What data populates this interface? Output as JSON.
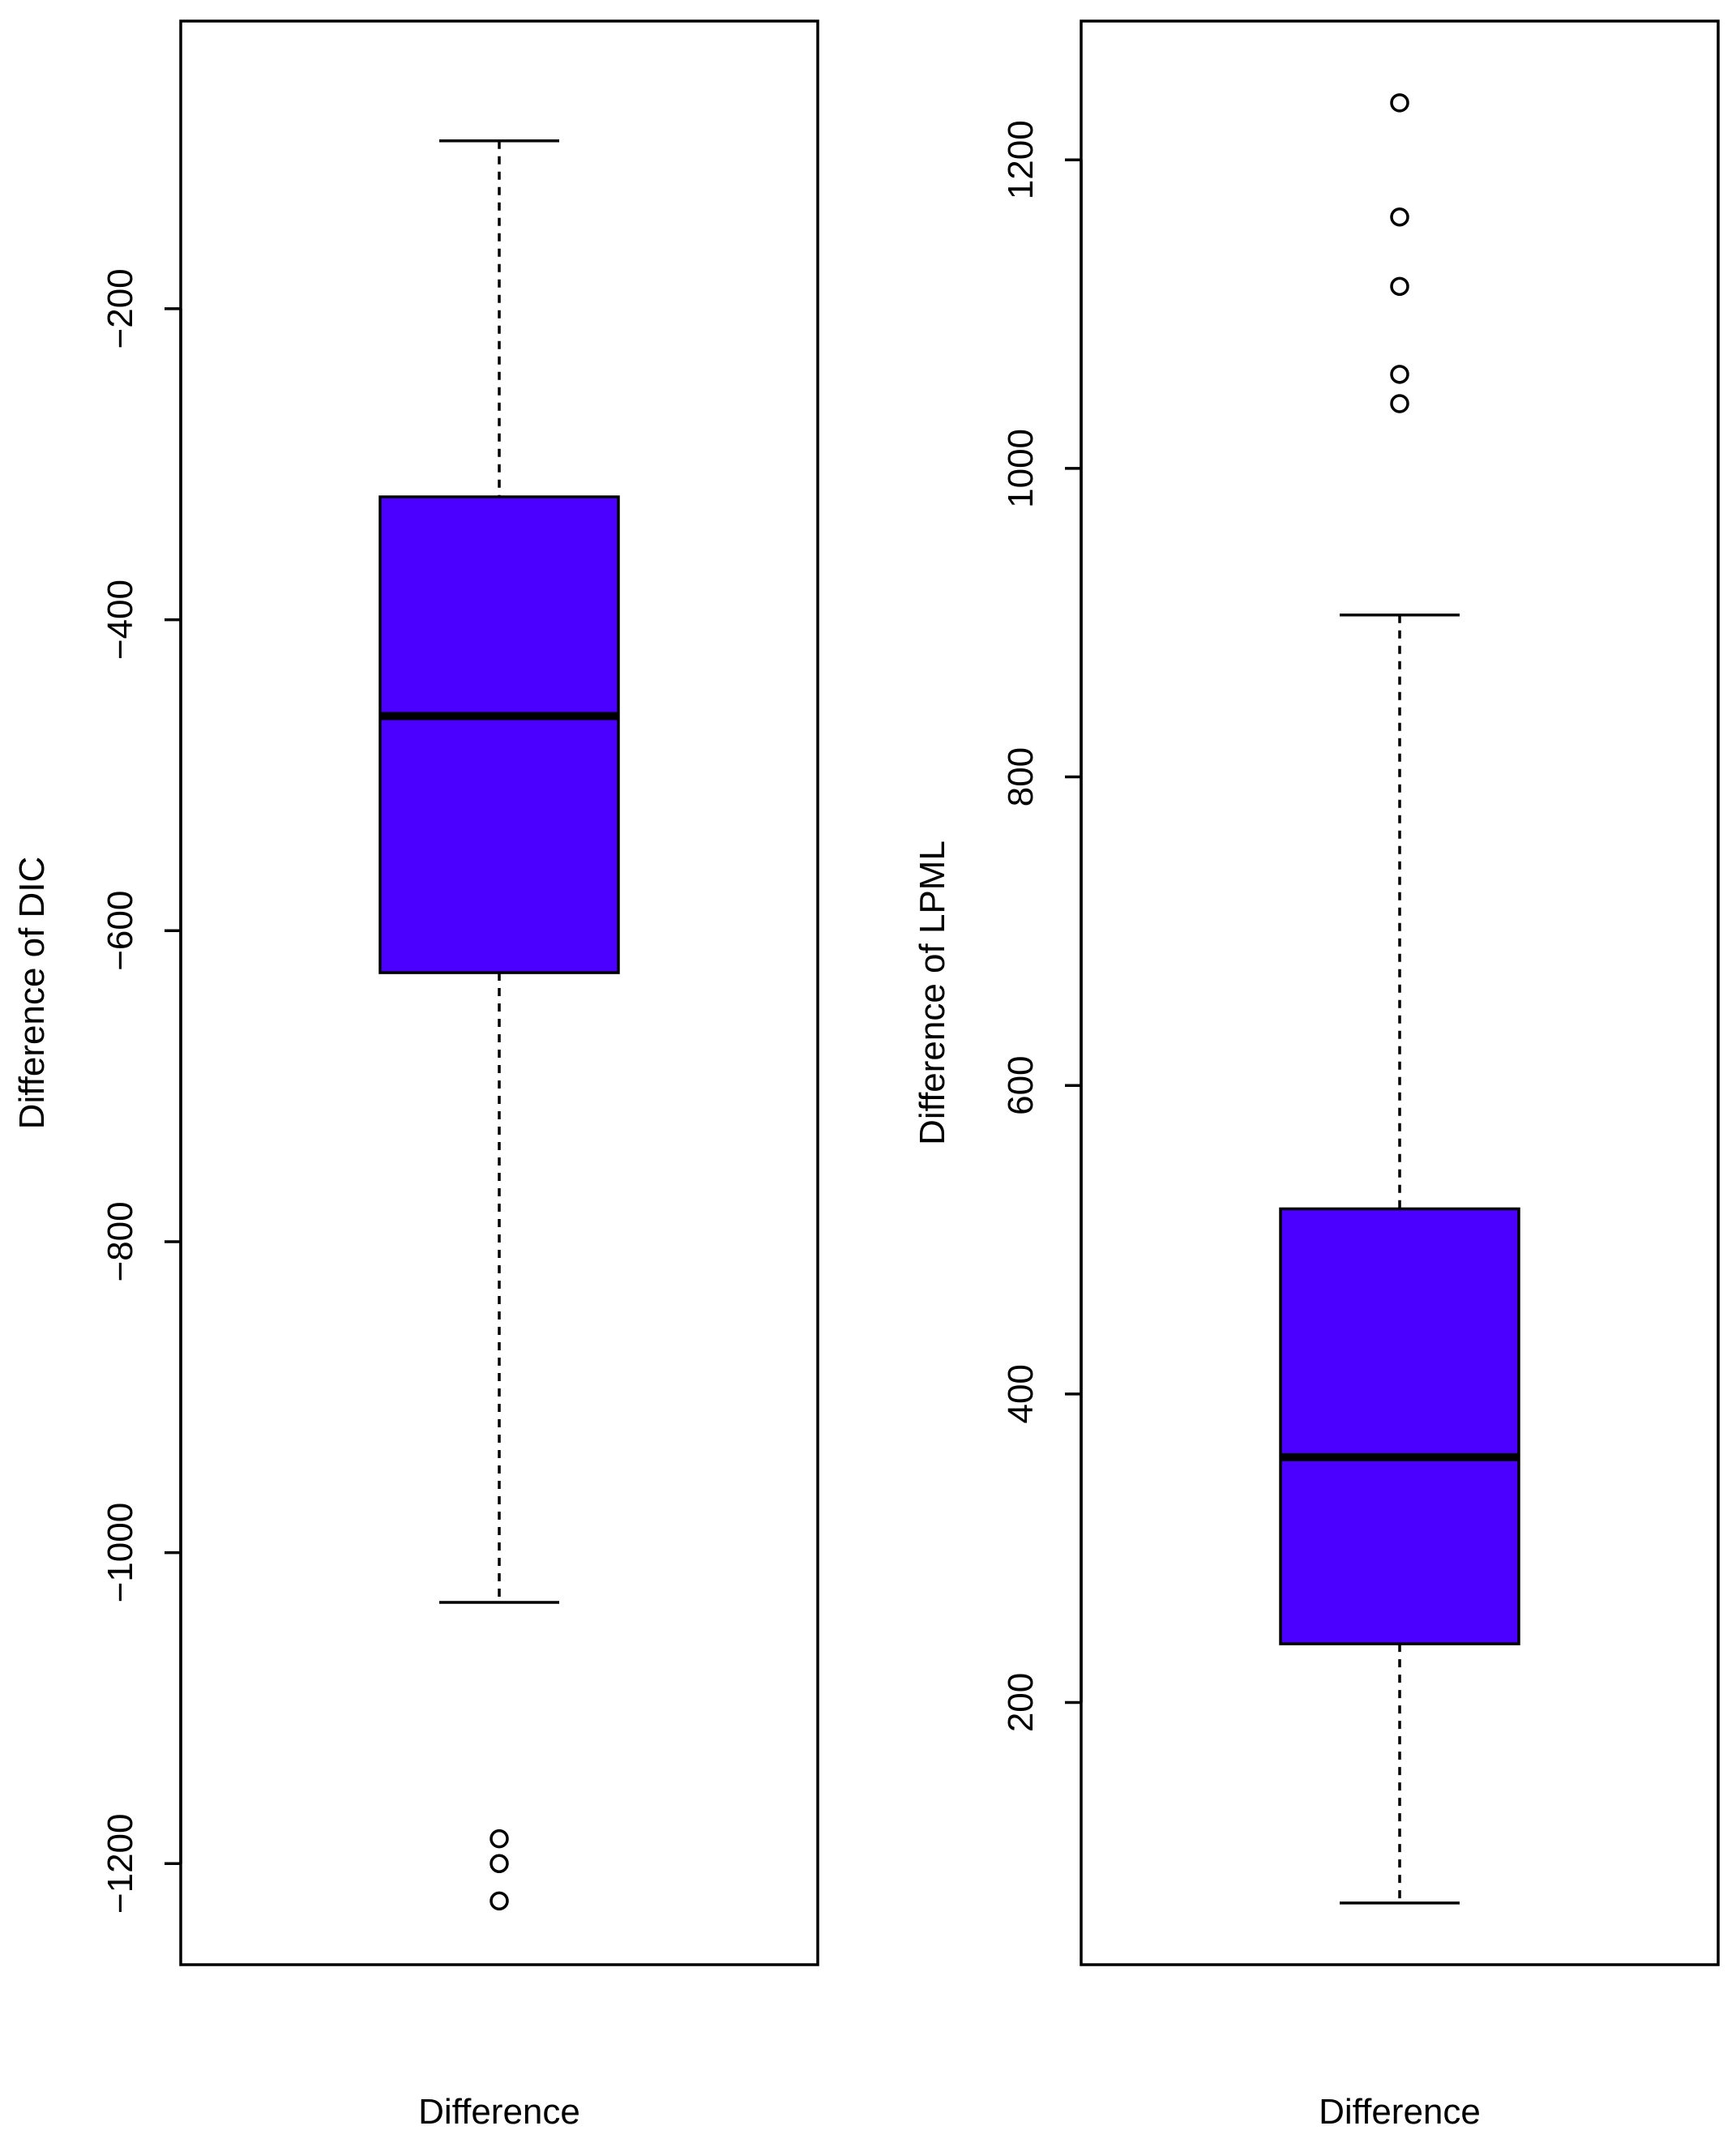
{
  "chart_data": [
    {
      "type": "box",
      "xlabel": "Difference",
      "ylabel": "Difference of DIC",
      "yticks": [
        -200,
        -400,
        -600,
        -800,
        -1000,
        -1200
      ],
      "ylim": [
        -1265,
        -15
      ],
      "box_color": "#4B00FF",
      "box": {
        "whisker_high": -92,
        "q3": -321,
        "median": -462,
        "q1": -627,
        "whisker_low": -1032,
        "outliers": [
          -1184,
          -1200,
          -1224
        ]
      }
    },
    {
      "type": "box",
      "xlabel": "Difference",
      "ylabel": "Difference of LPML",
      "yticks": [
        200,
        400,
        600,
        800,
        1000,
        1200
      ],
      "ylim": [
        30,
        1290
      ],
      "box_color": "#4B00FF",
      "box": {
        "whisker_high": 905,
        "q3": 520,
        "median": 359,
        "q1": 238,
        "whisker_low": 70,
        "outliers": [
          1237,
          1163,
          1118,
          1061,
          1042
        ]
      }
    }
  ]
}
